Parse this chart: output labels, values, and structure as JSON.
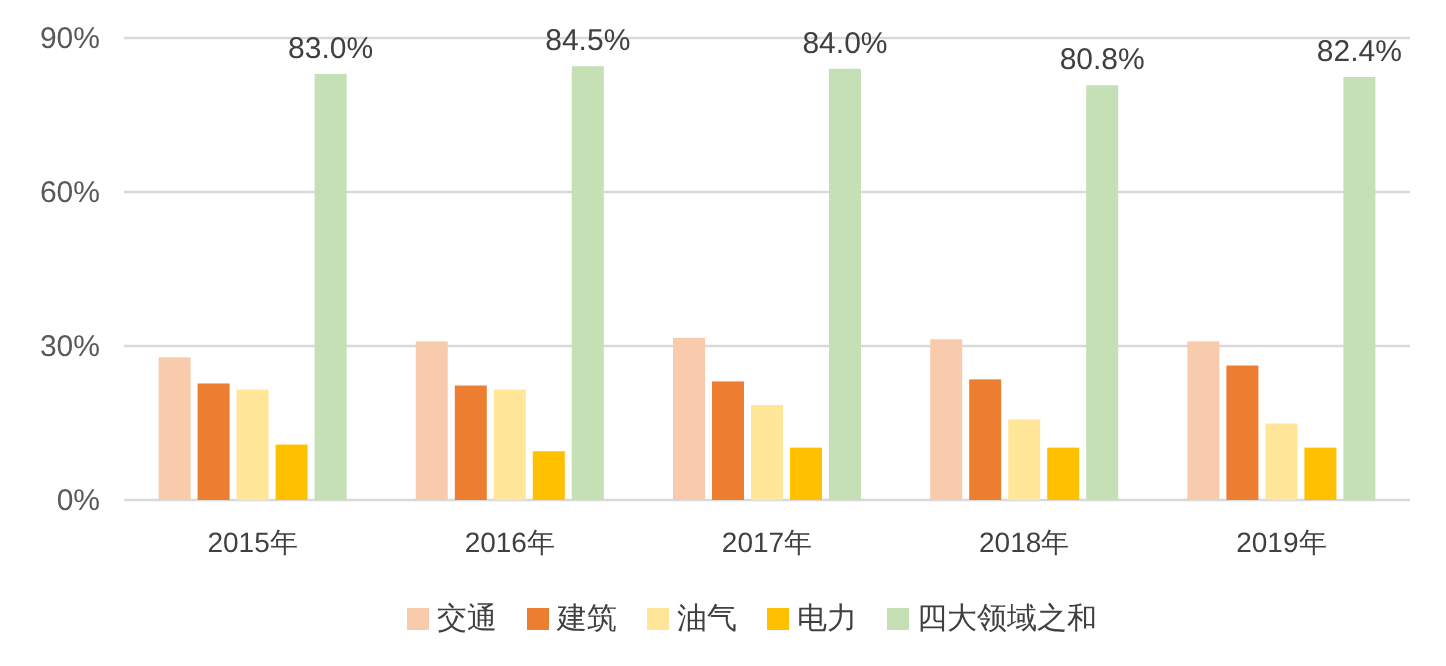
{
  "chart_data": {
    "type": "bar",
    "categories": [
      "2015年",
      "2016年",
      "2017年",
      "2018年",
      "2019年"
    ],
    "series": [
      {
        "name": "交通",
        "color": "#f8cbad",
        "values": [
          27.8,
          30.9,
          31.6,
          31.3,
          30.9
        ]
      },
      {
        "name": "建筑",
        "color": "#ed7d31",
        "values": [
          22.7,
          22.3,
          23.1,
          23.5,
          26.2
        ]
      },
      {
        "name": "油气",
        "color": "#ffe699",
        "values": [
          21.5,
          21.5,
          18.5,
          15.7,
          14.9
        ]
      },
      {
        "name": "电力",
        "color": "#ffc000",
        "values": [
          10.8,
          9.5,
          10.2,
          10.2,
          10.2
        ]
      },
      {
        "name": "四大领域之和",
        "color": "#c5e0b4",
        "values": [
          83.0,
          84.5,
          84.0,
          80.8,
          82.4
        ],
        "value_labels": [
          "83.0%",
          "84.5%",
          "84.0%",
          "80.8%",
          "82.4%"
        ]
      }
    ],
    "ylim": [
      0,
      90
    ],
    "yticks": [
      {
        "value": 0,
        "label": "0%"
      },
      {
        "value": 30,
        "label": "30%"
      },
      {
        "value": 60,
        "label": "60%"
      },
      {
        "value": 90,
        "label": "90%"
      }
    ],
    "grid": "y",
    "legend": "bottom"
  }
}
